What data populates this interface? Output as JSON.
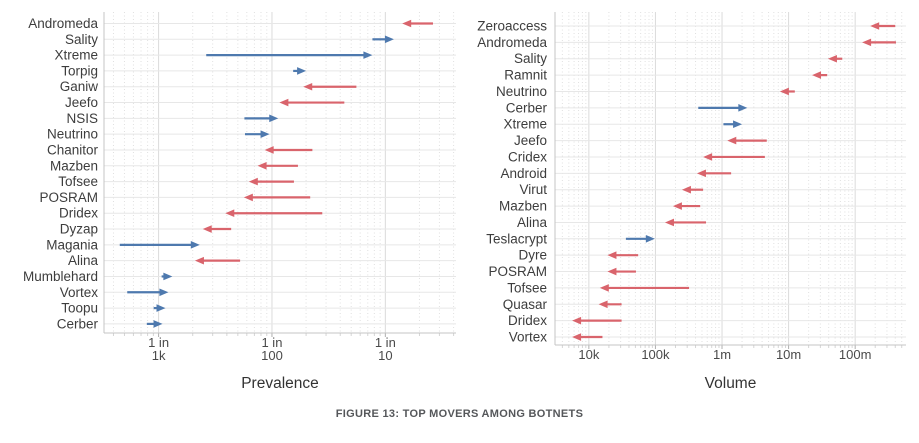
{
  "figure": {
    "caption": "FIGURE 13: TOP MOVERS AMONG BOTNETS"
  },
  "colors": {
    "increase_arrow": "#4E79AE",
    "decrease_arrow": "#D9646C",
    "category_label_text": "#3d3d3d",
    "tick_label_text": "#4a4a4a",
    "axis_title_text": "#333333",
    "grid_major": "#dbdbdb",
    "grid_minor": "#e0e0e0",
    "grid_row": "#e7e7e7",
    "axis_line": "#c4c4c4"
  },
  "chart_data": [
    {
      "type": "scatter",
      "variant": "arrow-dumbbell",
      "title": "",
      "xlabel": "Prevalence",
      "x_scale": "log",
      "x_unit": "prevalence expressed as 1 in N machines (higher prevalence to the right)",
      "x_domain": [
        0.00033,
        0.42
      ],
      "grid": true,
      "legend": "none (arrow color: blue = increase, red = decrease)",
      "x_ticks": [
        {
          "value": 0.001,
          "label": "1 in\n1k"
        },
        {
          "value": 0.01,
          "label": "1 in\n100"
        },
        {
          "value": 0.1,
          "label": "1 in\n10"
        }
      ],
      "rows": [
        {
          "name": "Andromeda",
          "from_one_in": 3.8,
          "to_one_in": 7.1,
          "change": "decrease"
        },
        {
          "name": "Sality",
          "from_one_in": 13,
          "to_one_in": 8.4,
          "change": "increase"
        },
        {
          "name": "Xtreme",
          "from_one_in": 380,
          "to_one_in": 13,
          "change": "increase"
        },
        {
          "name": "Torpig",
          "from_one_in": 65,
          "to_one_in": 50,
          "change": "increase"
        },
        {
          "name": "Ganiw",
          "from_one_in": 18,
          "to_one_in": 53,
          "change": "decrease"
        },
        {
          "name": "Jeefo",
          "from_one_in": 23,
          "to_one_in": 86,
          "change": "decrease"
        },
        {
          "name": "NSIS",
          "from_one_in": 175,
          "to_one_in": 88,
          "change": "increase"
        },
        {
          "name": "Neutrino",
          "from_one_in": 173,
          "to_one_in": 105,
          "change": "increase"
        },
        {
          "name": "Chanitor",
          "from_one_in": 44,
          "to_one_in": 116,
          "change": "decrease"
        },
        {
          "name": "Mazben",
          "from_one_in": 59,
          "to_one_in": 134,
          "change": "decrease"
        },
        {
          "name": "Tofsee",
          "from_one_in": 64,
          "to_one_in": 160,
          "change": "decrease"
        },
        {
          "name": "POSRAM",
          "from_one_in": 46,
          "to_one_in": 177,
          "change": "decrease"
        },
        {
          "name": "Dridex",
          "from_one_in": 36,
          "to_one_in": 258,
          "change": "decrease"
        },
        {
          "name": "Dyzap",
          "from_one_in": 229,
          "to_one_in": 408,
          "change": "decrease"
        },
        {
          "name": "Magania",
          "from_one_in": 2200,
          "to_one_in": 433,
          "change": "increase"
        },
        {
          "name": "Alina",
          "from_one_in": 191,
          "to_one_in": 478,
          "change": "decrease"
        },
        {
          "name": "Mumblehard",
          "from_one_in": 940,
          "to_one_in": 756,
          "change": "increase"
        },
        {
          "name": "Vortex",
          "from_one_in": 1890,
          "to_one_in": 819,
          "change": "increase"
        },
        {
          "name": "Toopu",
          "from_one_in": 1105,
          "to_one_in": 869,
          "change": "increase"
        },
        {
          "name": "Cerber",
          "from_one_in": 1270,
          "to_one_in": 923,
          "change": "increase"
        }
      ]
    },
    {
      "type": "scatter",
      "variant": "arrow-dumbbell",
      "title": "",
      "xlabel": "Volume",
      "x_scale": "log",
      "x_unit": "count",
      "x_domain": [
        3100,
        580000000
      ],
      "grid": true,
      "legend": "none (arrow color: blue = increase, red = decrease)",
      "x_ticks": [
        {
          "value": 10000,
          "label": "10k"
        },
        {
          "value": 100000,
          "label": "100k"
        },
        {
          "value": 1000000,
          "label": "1m"
        },
        {
          "value": 10000000,
          "label": "10m"
        },
        {
          "value": 100000000,
          "label": "100m"
        }
      ],
      "rows": [
        {
          "name": "Zeroaccess",
          "from": 400000000,
          "to": 168000000,
          "change": "decrease"
        },
        {
          "name": "Andromeda",
          "from": 410000000,
          "to": 127000000,
          "change": "decrease"
        },
        {
          "name": "Sality",
          "from": 64000000,
          "to": 39000000,
          "change": "decrease"
        },
        {
          "name": "Ramnit",
          "from": 38000000,
          "to": 22500000,
          "change": "decrease"
        },
        {
          "name": "Neutrino",
          "from": 12400000,
          "to": 7400000,
          "change": "decrease"
        },
        {
          "name": "Cerber",
          "from": 440000,
          "to": 2400000,
          "change": "increase"
        },
        {
          "name": "Xtreme",
          "from": 1050000,
          "to": 2000000,
          "change": "increase"
        },
        {
          "name": "Jeefo",
          "from": 4700000,
          "to": 1200000,
          "change": "decrease"
        },
        {
          "name": "Cridex",
          "from": 4400000,
          "to": 520000,
          "change": "decrease"
        },
        {
          "name": "Android",
          "from": 1370000,
          "to": 420000,
          "change": "decrease"
        },
        {
          "name": "Virut",
          "from": 520000,
          "to": 250000,
          "change": "decrease"
        },
        {
          "name": "Mazben",
          "from": 470000,
          "to": 183000,
          "change": "decrease"
        },
        {
          "name": "Alina",
          "from": 575000,
          "to": 139000,
          "change": "decrease"
        },
        {
          "name": "Teslacrypt",
          "from": 36000,
          "to": 98000,
          "change": "increase"
        },
        {
          "name": "Dyre",
          "from": 55000,
          "to": 19000,
          "change": "decrease"
        },
        {
          "name": "POSRAM",
          "from": 51000,
          "to": 19000,
          "change": "decrease"
        },
        {
          "name": "Tofsee",
          "from": 320000,
          "to": 14600,
          "change": "decrease"
        },
        {
          "name": "Quasar",
          "from": 31000,
          "to": 14000,
          "change": "decrease"
        },
        {
          "name": "Dridex",
          "from": 31000,
          "to": 5600,
          "change": "decrease"
        },
        {
          "name": "Vortex",
          "from": 16000,
          "to": 5600,
          "change": "decrease"
        }
      ]
    }
  ]
}
